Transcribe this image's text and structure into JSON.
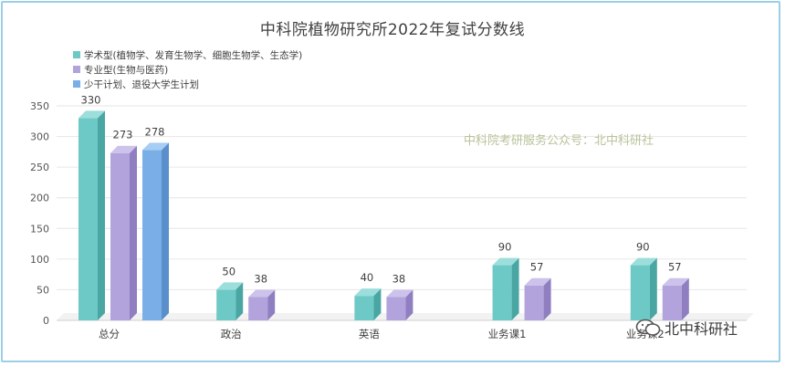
{
  "chart_data": {
    "type": "bar",
    "title": "中科院植物研究所2022年复试分数线",
    "categories": [
      "总分",
      "政治",
      "英语",
      "业务课1",
      "业务课2"
    ],
    "series": [
      {
        "name": "学术型(植物学、发育生物学、细胞生物学、生态学)",
        "color": "#6cc9c6",
        "side": "#4aa6a3",
        "top": "#9cdedb",
        "values": [
          330,
          50,
          40,
          90,
          90
        ]
      },
      {
        "name": "专业型(生物与医药)",
        "color": "#b2a3dc",
        "side": "#8f7fc0",
        "top": "#cdc2ec",
        "values": [
          273,
          38,
          38,
          57,
          57
        ]
      },
      {
        "name": "少干计划、退役大学生计划",
        "color": "#79afe6",
        "side": "#5a8fcb",
        "top": "#a6cdf3",
        "values": [
          278,
          null,
          null,
          null,
          null
        ]
      }
    ],
    "ylim": [
      0,
      350
    ],
    "yticks": [
      0,
      50,
      100,
      150,
      200,
      250,
      300,
      350
    ],
    "grid": true,
    "legend": "top-left"
  },
  "watermark": "中科院考研服务公众号：北中科研社",
  "brand": "北中科研社"
}
